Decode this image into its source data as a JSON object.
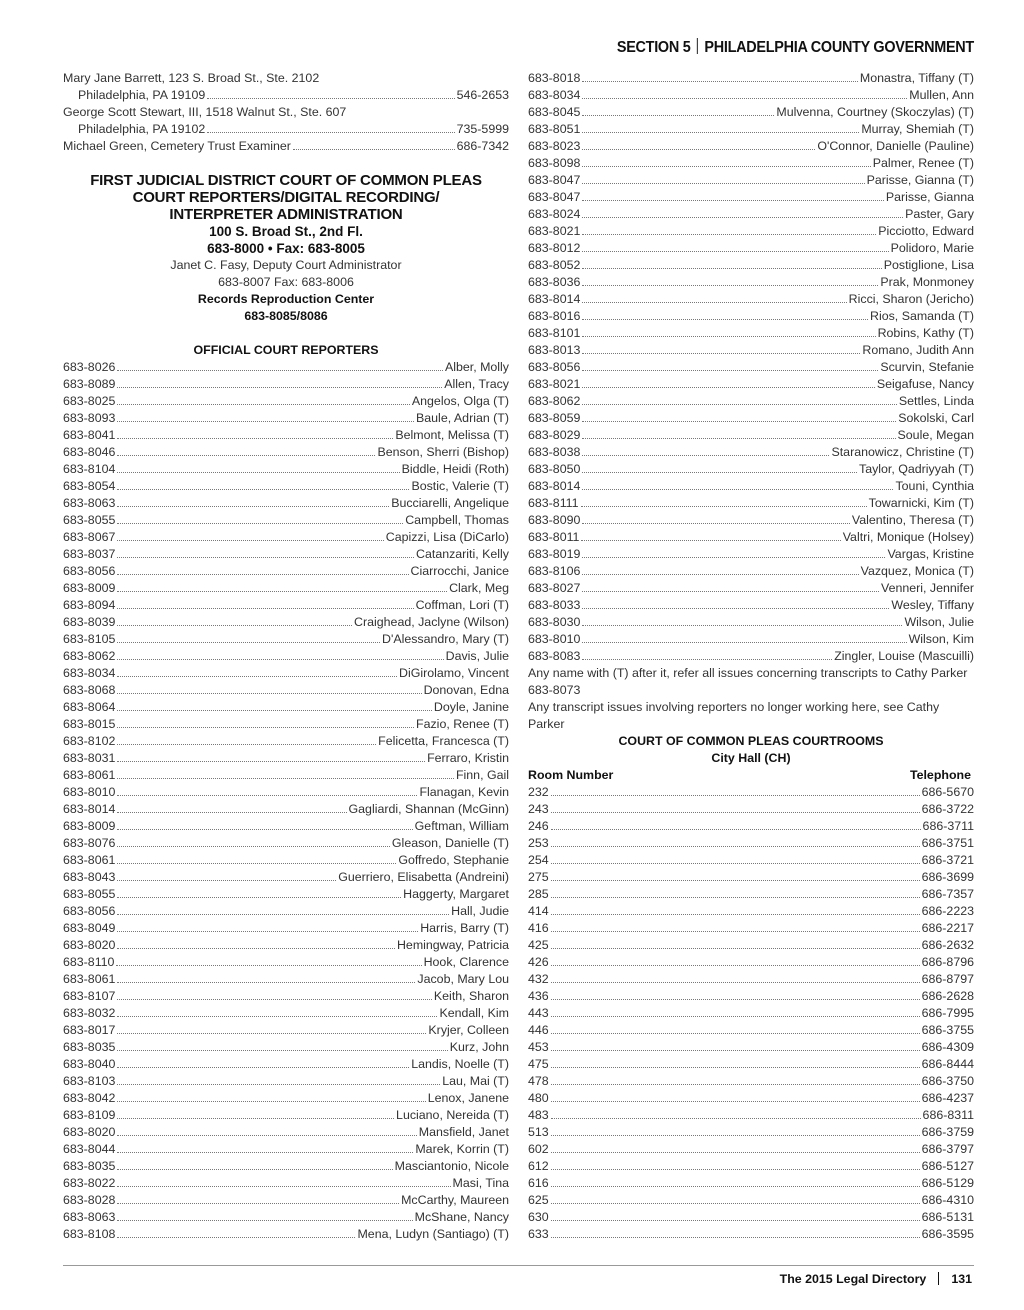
{
  "header": {
    "section": "SECTION 5",
    "title": "PHILADELPHIA COUNTY GOVERNMENT"
  },
  "left": {
    "top_entries": [
      {
        "line1": "Mary Jane Barrett, 123 S. Broad St., Ste. 2102",
        "line2": "Philadelphia, PA 19109",
        "phone": "546-2653"
      },
      {
        "line1": "George Scott Stewart, III, 1518 Walnut St., Ste. 607",
        "line2": "Philadelphia, PA 19102",
        "phone": "735-5999"
      }
    ],
    "single_entry": {
      "name": "Michael Green, Cemetery Trust Examiner",
      "phone": "686-7342"
    },
    "court": {
      "title_lines": [
        "FIRST JUDICIAL DISTRICT COURT OF COMMON PLEAS",
        "COURT REPORTERS/DIGITAL RECORDING/",
        "INTERPRETER ADMINISTRATION"
      ],
      "address": "100 S. Broad St., 2nd Fl.",
      "phone_fax": "683-8000 • Fax: 683-8005",
      "admin": "Janet C. Fasy, Deputy Court Administrator",
      "admin_phone": "683-8007 Fax: 683-8006",
      "records_title": "Records Reproduction Center",
      "records_phone": "683-8085/8086"
    },
    "reporters_title": "OFFICIAL COURT REPORTERS",
    "reporters": [
      [
        "683-8026",
        "Alber, Molly"
      ],
      [
        "683-8089",
        "Allen, Tracy"
      ],
      [
        "683-8025",
        "Angelos, Olga (T)"
      ],
      [
        "683-8093",
        "Baule, Adrian (T)"
      ],
      [
        "683-8041",
        "Belmont, Melissa (T)"
      ],
      [
        "683-8046",
        "Benson, Sherri (Bishop)"
      ],
      [
        "683-8104",
        "Biddle, Heidi (Roth)"
      ],
      [
        "683-8054",
        "Bostic, Valerie (T)"
      ],
      [
        "683-8063",
        "Bucciarelli, Angelique"
      ],
      [
        "683-8055",
        "Campbell, Thomas"
      ],
      [
        "683-8067",
        "Capizzi, Lisa (DiCarlo)"
      ],
      [
        "683-8037",
        "Catanzariti, Kelly"
      ],
      [
        "683-8056",
        "Ciarrocchi, Janice"
      ],
      [
        "683-8009",
        "Clark, Meg"
      ],
      [
        "683-8094",
        "Coffman, Lori (T)"
      ],
      [
        "683-8039",
        "Craighead, Jaclyne (Wilson)"
      ],
      [
        "683-8105",
        "D'Alessandro, Mary (T)"
      ],
      [
        "683-8062",
        "Davis, Julie"
      ],
      [
        "683-8034",
        "DiGirolamo, Vincent"
      ],
      [
        "683-8068",
        "Donovan, Edna"
      ],
      [
        "683-8064",
        "Doyle, Janine"
      ],
      [
        "683-8015",
        "Fazio, Renee (T)"
      ],
      [
        "683-8102",
        "Felicetta, Francesca (T)"
      ],
      [
        "683-8031",
        "Ferraro, Kristin"
      ],
      [
        "683-8061",
        "Finn, Gail"
      ],
      [
        "683-8010",
        "Flanagan, Kevin"
      ],
      [
        "683-8014",
        "Gagliardi, Shannan (McGinn)"
      ],
      [
        "683-8009",
        "Geftman, William"
      ],
      [
        "683-8076",
        "Gleason, Danielle (T)"
      ],
      [
        "683-8061",
        "Goffredo, Stephanie"
      ],
      [
        "683-8043",
        "Guerriero, Elisabetta (Andreini)"
      ],
      [
        "683-8055",
        "Haggerty, Margaret"
      ],
      [
        "683-8056",
        "Hall, Judie"
      ],
      [
        "683-8049",
        "Harris, Barry (T)"
      ],
      [
        "683-8020",
        "Hemingway, Patricia"
      ],
      [
        "683-8110",
        "Hook, Clarence"
      ],
      [
        "683-8061",
        "Jacob, Mary Lou"
      ],
      [
        "683-8107",
        "Keith, Sharon"
      ],
      [
        "683-8032",
        "Kendall, Kim"
      ],
      [
        "683-8017",
        "Kryjer, Colleen"
      ],
      [
        "683-8035",
        "Kurz, John"
      ],
      [
        "683-8040",
        "Landis, Noelle (T)"
      ],
      [
        "683-8103",
        "Lau, Mai (T)"
      ],
      [
        "683-8042",
        "Lenox, Janene"
      ],
      [
        "683-8109",
        "Luciano, Nereida (T)"
      ],
      [
        "683-8020",
        "Mansfield, Janet"
      ],
      [
        "683-8044",
        "Marek, Korrin (T)"
      ],
      [
        "683-8035",
        "Masciantonio, Nicole"
      ],
      [
        "683-8022",
        "Masi, Tina"
      ],
      [
        "683-8028",
        "McCarthy, Maureen"
      ],
      [
        "683-8063",
        "McShane, Nancy"
      ],
      [
        "683-8108",
        "Mena, Ludyn (Santiago) (T)"
      ]
    ]
  },
  "right": {
    "reporters": [
      [
        "683-8018",
        "Monastra, Tiffany (T)"
      ],
      [
        "683-8034",
        "Mullen, Ann"
      ],
      [
        "683-8045",
        "Mulvenna, Courtney (Skoczylas) (T)"
      ],
      [
        "683-8051",
        "Murray, Shemiah (T)"
      ],
      [
        "683-8023",
        "O'Connor, Danielle (Pauline)"
      ],
      [
        "683-8098",
        "Palmer, Renee (T)"
      ],
      [
        "683-8047",
        "Parisse, Gianna (T)"
      ],
      [
        "683-8047",
        "Parisse, Gianna"
      ],
      [
        "683-8024",
        "Paster, Gary"
      ],
      [
        "683-8021",
        "Picciotto, Edward"
      ],
      [
        "683-8012",
        "Polidoro, Marie"
      ],
      [
        "683-8052",
        "Postiglione, Lisa"
      ],
      [
        "683-8036",
        "Prak, Monmoney"
      ],
      [
        "683-8014",
        "Ricci, Sharon (Jericho)"
      ],
      [
        "683-8016",
        "Rios, Samanda (T)"
      ],
      [
        "683-8101",
        "Robins, Kathy (T)"
      ],
      [
        "683-8013",
        "Romano, Judith Ann"
      ],
      [
        "683-8056",
        "Scurvin, Stefanie"
      ],
      [
        "683-8021",
        "Seigafuse, Nancy"
      ],
      [
        "683-8062",
        "Settles, Linda"
      ],
      [
        "683-8059",
        "Sokolski, Carl"
      ],
      [
        "683-8029",
        "Soule, Megan"
      ],
      [
        "683-8038",
        "Staranowicz, Christine (T)"
      ],
      [
        "683-8050",
        "Taylor, Qadriyyah (T)"
      ],
      [
        "683-8014",
        "Touni, Cynthia"
      ],
      [
        "683-8111",
        "Towarnicki, Kim (T)"
      ],
      [
        "683-8090",
        "Valentino, Theresa (T)"
      ],
      [
        "683-8011",
        "Valtri, Monique (Holsey)"
      ],
      [
        "683-8019",
        "Vargas, Kristine"
      ],
      [
        "683-8106",
        "Vazquez, Monica (T)"
      ],
      [
        "683-8027",
        "Venneri, Jennifer"
      ],
      [
        "683-8033",
        "Wesley, Tiffany"
      ],
      [
        "683-8030",
        "Wilson, Julie"
      ],
      [
        "683-8010",
        "Wilson, Kim"
      ],
      [
        "683-8083",
        "Zingler, Louise (Mascuilli)"
      ]
    ],
    "note1": "Any name with (T) after it, refer all issues concerning transcripts to Cathy Parker 683-8073",
    "note2": "Any transcript issues involving reporters no longer working here, see Cathy Parker",
    "courtrooms_title": "COURT OF COMMON PLEAS COURTROOMS",
    "courtrooms_subtitle": "City Hall (CH)",
    "col_room": "Room Number",
    "col_phone": "Telephone",
    "courtrooms": [
      [
        "232",
        "686-5670"
      ],
      [
        "243",
        "686-3722"
      ],
      [
        "246",
        "686-3711"
      ],
      [
        "253",
        "686-3751"
      ],
      [
        "254",
        "686-3721"
      ],
      [
        "275",
        "686-3699"
      ],
      [
        "285",
        "686-7357"
      ],
      [
        "414",
        "686-2223"
      ],
      [
        "416",
        "686-2217"
      ],
      [
        "425",
        "686-2632"
      ],
      [
        "426",
        "686-8796"
      ],
      [
        "432",
        "686-8797"
      ],
      [
        "436",
        "686-2628"
      ],
      [
        "443",
        "686-7995"
      ],
      [
        "446",
        "686-3755"
      ],
      [
        "453",
        "686-4309"
      ],
      [
        "475",
        "686-8444"
      ],
      [
        "478",
        "686-3750"
      ],
      [
        "480",
        "686-4237"
      ],
      [
        "483",
        "686-8311"
      ],
      [
        "513",
        "686-3759"
      ],
      [
        "602",
        "686-3797"
      ],
      [
        "612",
        "686-5127"
      ],
      [
        "616",
        "686-5129"
      ],
      [
        "625",
        "686-4310"
      ],
      [
        "630",
        "686-5131"
      ],
      [
        "633",
        "686-3595"
      ]
    ]
  },
  "footer": {
    "publication": "The 2015 Legal Directory",
    "page": "131"
  }
}
